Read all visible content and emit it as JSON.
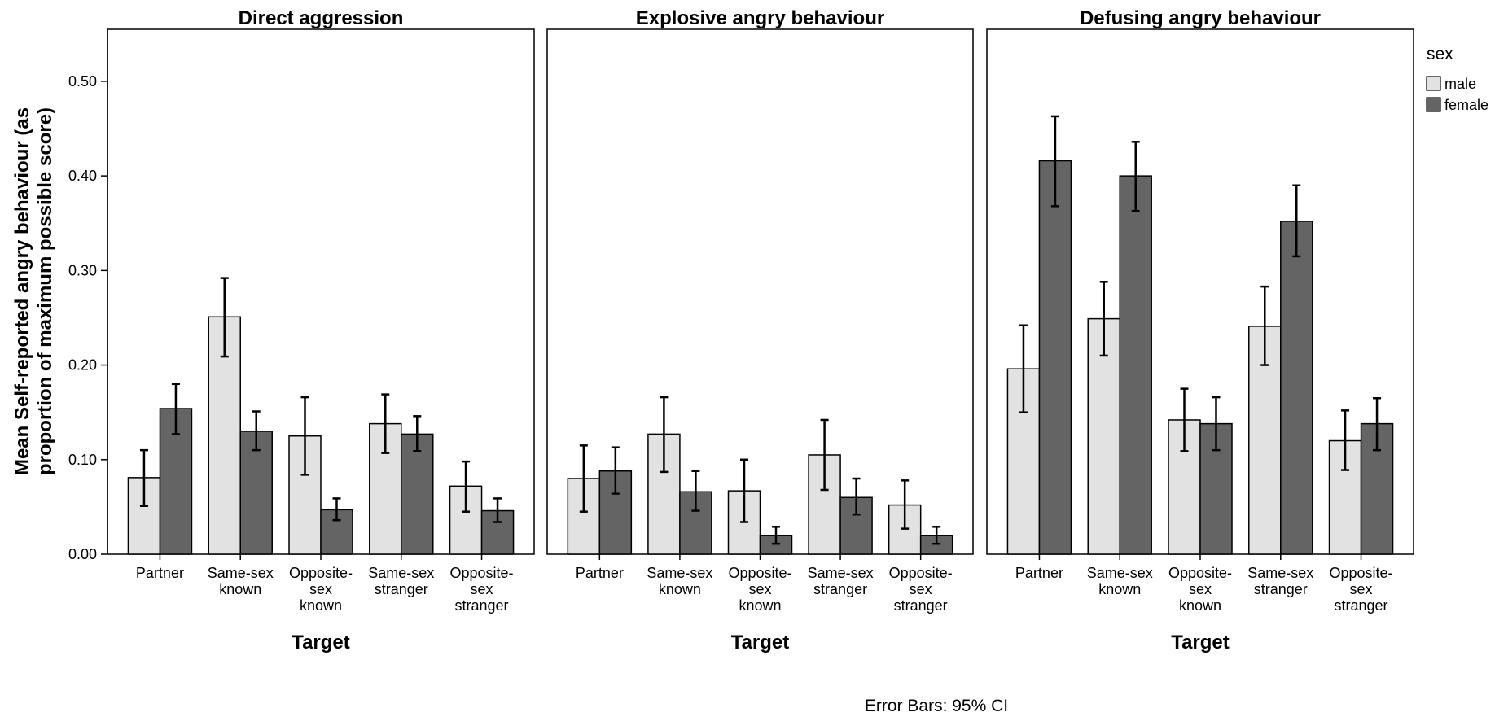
{
  "chart_data": {
    "type": "bar",
    "ylabel_lines": [
      "Mean Self-reported angry behaviour (as",
      "proportion of maximum possible score)"
    ],
    "xlabel": "Target",
    "ylim": [
      0,
      0.555
    ],
    "yticks": [
      "0.00",
      "0.10",
      "0.20",
      "0.30",
      "0.40",
      "0.50"
    ],
    "ytick_values": [
      0,
      0.1,
      0.2,
      0.3,
      0.4,
      0.5
    ],
    "grid": false,
    "categories": [
      [
        "Partner"
      ],
      [
        "Same-sex",
        "known"
      ],
      [
        "Opposite-",
        "sex",
        "known"
      ],
      [
        "Same-sex",
        "stranger"
      ],
      [
        "Opposite-",
        "sex",
        "stranger"
      ]
    ],
    "legend": {
      "title": "sex",
      "placement": "right",
      "entries": [
        {
          "name": "male",
          "color": "#e2e2e2"
        },
        {
          "name": "female",
          "color": "#646464"
        }
      ]
    },
    "footnote": "Error Bars: 95% CI",
    "panels": [
      {
        "title": "Direct aggression",
        "series": [
          {
            "name": "male",
            "values": [
              0.081,
              0.251,
              0.125,
              0.138,
              0.072
            ],
            "ci_low": [
              0.051,
              0.209,
              0.084,
              0.107,
              0.045
            ],
            "ci_high": [
              0.11,
              0.292,
              0.166,
              0.169,
              0.098
            ]
          },
          {
            "name": "female",
            "values": [
              0.154,
              0.13,
              0.047,
              0.127,
              0.046
            ],
            "ci_low": [
              0.127,
              0.11,
              0.036,
              0.109,
              0.034
            ],
            "ci_high": [
              0.18,
              0.151,
              0.059,
              0.146,
              0.059
            ]
          }
        ]
      },
      {
        "title": "Explosive angry behaviour",
        "series": [
          {
            "name": "male",
            "values": [
              0.08,
              0.127,
              0.067,
              0.105,
              0.052
            ],
            "ci_low": [
              0.045,
              0.087,
              0.034,
              0.068,
              0.027
            ],
            "ci_high": [
              0.115,
              0.166,
              0.1,
              0.142,
              0.078
            ]
          },
          {
            "name": "female",
            "values": [
              0.088,
              0.066,
              0.02,
              0.06,
              0.02
            ],
            "ci_low": [
              0.064,
              0.046,
              0.011,
              0.042,
              0.011
            ],
            "ci_high": [
              0.113,
              0.088,
              0.029,
              0.08,
              0.029
            ]
          }
        ]
      },
      {
        "title": "Defusing angry behaviour",
        "series": [
          {
            "name": "male",
            "values": [
              0.196,
              0.249,
              0.142,
              0.241,
              0.12
            ],
            "ci_low": [
              0.15,
              0.21,
              0.109,
              0.2,
              0.089
            ],
            "ci_high": [
              0.242,
              0.288,
              0.175,
              0.283,
              0.152
            ]
          },
          {
            "name": "female",
            "values": [
              0.416,
              0.4,
              0.138,
              0.352,
              0.138
            ],
            "ci_low": [
              0.368,
              0.363,
              0.11,
              0.315,
              0.11
            ],
            "ci_high": [
              0.463,
              0.436,
              0.166,
              0.39,
              0.165
            ]
          }
        ]
      }
    ]
  }
}
